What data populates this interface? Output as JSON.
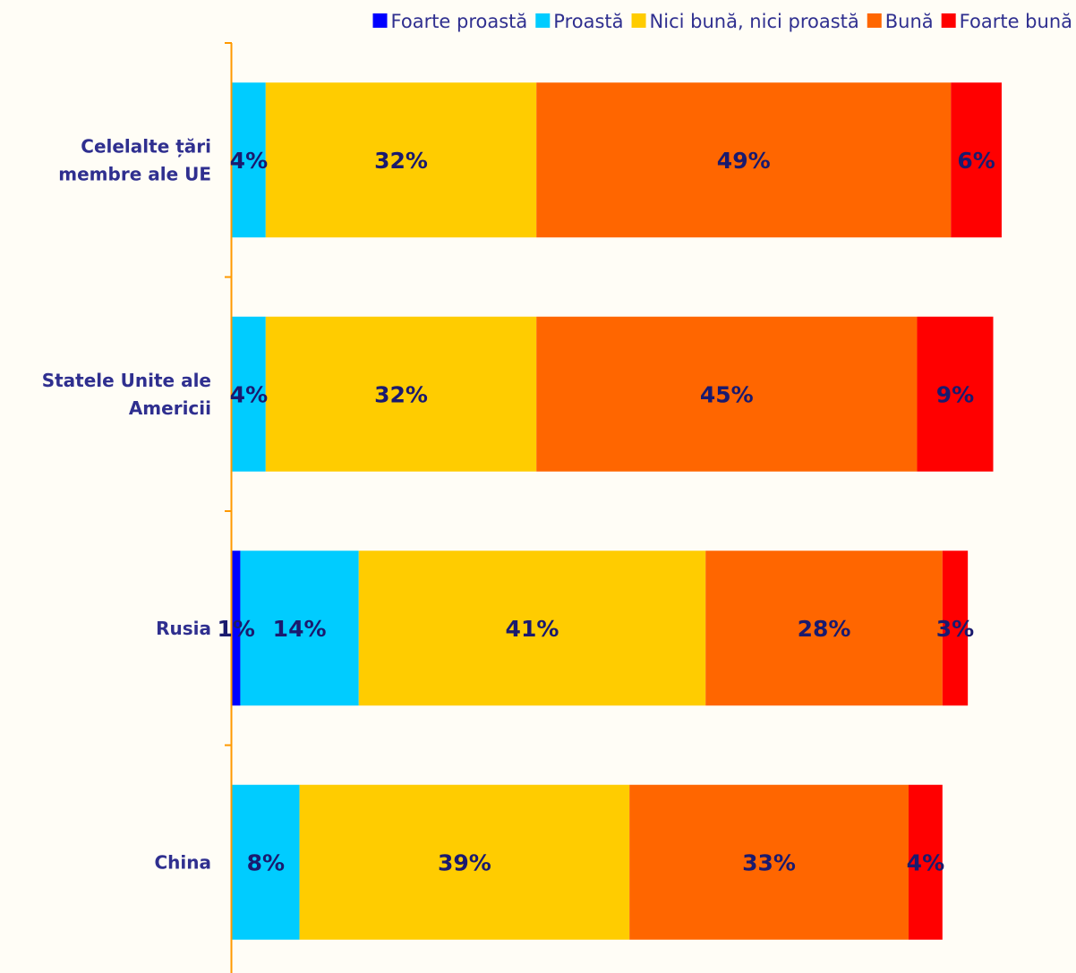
{
  "chart_data": {
    "type": "bar",
    "orientation": "horizontal",
    "stacked": true,
    "categories": [
      [
        "Celelalte țări",
        "membre ale UE"
      ],
      [
        "Statele Unite ale",
        "Americii"
      ],
      [
        "Rusia"
      ],
      [
        "China"
      ]
    ],
    "series": [
      {
        "name": "Foarte proastă",
        "color": "#0000ff",
        "values": [
          0,
          0,
          1,
          0
        ],
        "labels": [
          "",
          "",
          "1%",
          ""
        ]
      },
      {
        "name": "Proastă",
        "color": "#00ccff",
        "values": [
          4,
          4,
          14,
          8
        ],
        "labels": [
          "4%",
          "4%",
          "14%",
          "8%"
        ]
      },
      {
        "name": "Nici bună, nici proastă",
        "color": "#ffcc00",
        "values": [
          32,
          32,
          41,
          39
        ],
        "labels": [
          "32%",
          "32%",
          "41%",
          "39%"
        ]
      },
      {
        "name": "Bună",
        "color": "#ff6600",
        "values": [
          49,
          45,
          28,
          33
        ],
        "labels": [
          "49%",
          "45%",
          "28%",
          "33%"
        ]
      },
      {
        "name": "Foarte bună",
        "color": "#ff0000",
        "values": [
          6,
          9,
          3,
          4
        ],
        "labels": [
          "6%",
          "9%",
          "3%",
          "4%"
        ]
      }
    ],
    "legend_position": "top",
    "axis_color": "#ff9900",
    "xlim": [
      0,
      100
    ]
  }
}
